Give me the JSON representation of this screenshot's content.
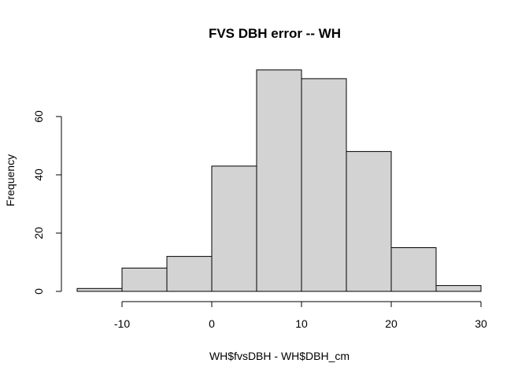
{
  "chart_data": {
    "type": "bar",
    "title": "FVS DBH error -- WH",
    "xlabel": "WH$fvsDBH - WH$DBH_cm",
    "ylabel": "Frequency",
    "bins": [
      {
        "x0": -15,
        "x1": -10,
        "count": 1
      },
      {
        "x0": -10,
        "x1": -5,
        "count": 8
      },
      {
        "x0": -5,
        "x1": 0,
        "count": 12
      },
      {
        "x0": 0,
        "x1": 5,
        "count": 43
      },
      {
        "x0": 5,
        "x1": 10,
        "count": 76
      },
      {
        "x0": 10,
        "x1": 15,
        "count": 73
      },
      {
        "x0": 15,
        "x1": 20,
        "count": 48
      },
      {
        "x0": 20,
        "x1": 25,
        "count": 15
      },
      {
        "x0": 25,
        "x1": 30,
        "count": 2
      }
    ],
    "xlim": [
      -15,
      30
    ],
    "ylim": [
      0,
      76
    ],
    "xticks": [
      -10,
      0,
      10,
      20,
      30
    ],
    "yticks": [
      0,
      20,
      40,
      60
    ],
    "bar_color": "#d3d3d3",
    "grid": false
  }
}
